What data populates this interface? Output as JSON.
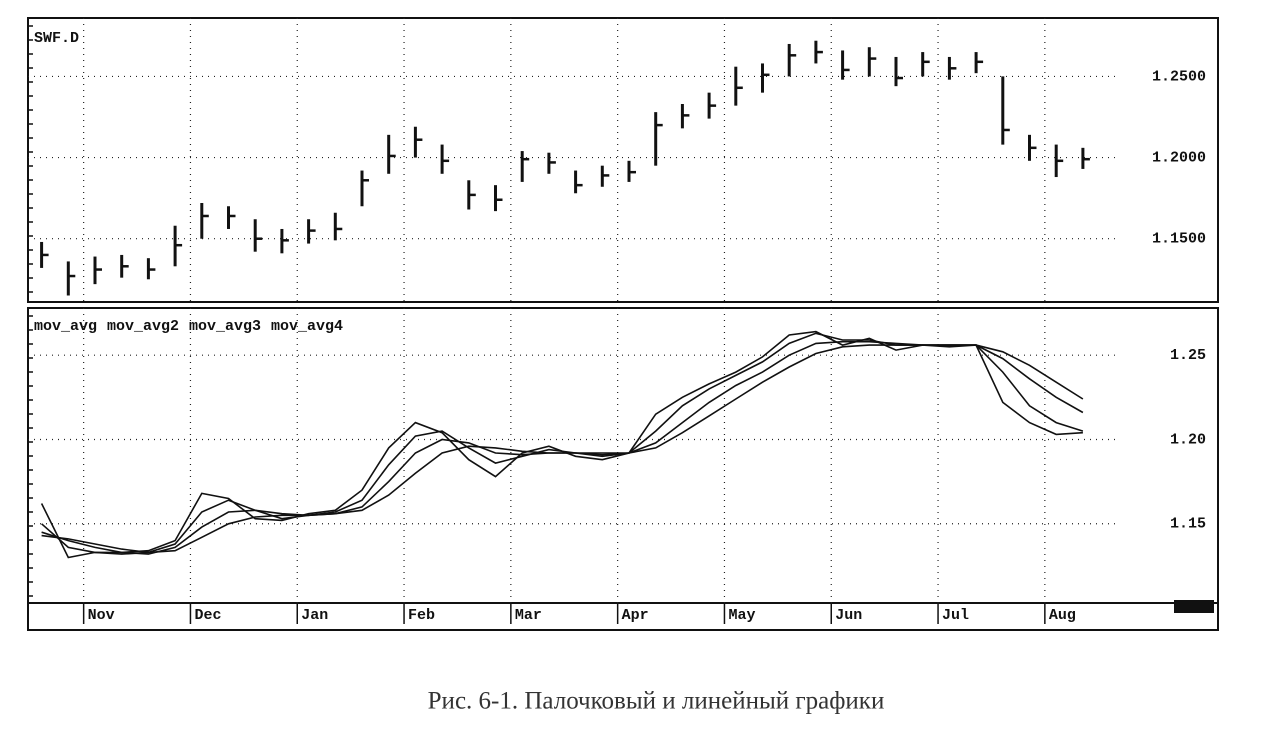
{
  "chart_data": [
    {
      "type": "ohlc",
      "title": "SWF.D",
      "color": "#111111",
      "categories": [
        null,
        null,
        null,
        null,
        null,
        null,
        null,
        null,
        null,
        null,
        null,
        null,
        null,
        null,
        null,
        null,
        null,
        null,
        null,
        null,
        null,
        null,
        null,
        null,
        null,
        null,
        null,
        null,
        null,
        null,
        null,
        null,
        null,
        null,
        null,
        null,
        null,
        null,
        null,
        null
      ],
      "high": [
        1.148,
        1.136,
        1.139,
        1.14,
        1.138,
        1.158,
        1.172,
        1.17,
        1.162,
        1.156,
        1.162,
        1.166,
        1.192,
        1.214,
        1.219,
        1.208,
        1.186,
        1.183,
        1.204,
        1.203,
        1.192,
        1.195,
        1.198,
        1.228,
        1.233,
        1.24,
        1.256,
        1.258,
        1.27,
        1.272,
        1.266,
        1.268,
        1.262,
        1.265,
        1.262,
        1.265,
        1.25,
        1.214,
        1.208,
        1.206
      ],
      "low": [
        1.132,
        1.115,
        1.122,
        1.126,
        1.125,
        1.133,
        1.15,
        1.156,
        1.142,
        1.141,
        1.147,
        1.149,
        1.17,
        1.19,
        1.2,
        1.19,
        1.168,
        1.167,
        1.185,
        1.19,
        1.178,
        1.182,
        1.185,
        1.195,
        1.218,
        1.224,
        1.232,
        1.24,
        1.25,
        1.258,
        1.248,
        1.25,
        1.244,
        1.25,
        1.248,
        1.252,
        1.208,
        1.198,
        1.188,
        1.193
      ],
      "close": [
        1.14,
        1.127,
        1.131,
        1.133,
        1.131,
        1.146,
        1.164,
        1.164,
        1.15,
        1.149,
        1.155,
        1.156,
        1.186,
        1.201,
        1.211,
        1.198,
        1.177,
        1.174,
        1.199,
        1.197,
        1.183,
        1.189,
        1.191,
        1.22,
        1.226,
        1.232,
        1.243,
        1.251,
        1.263,
        1.265,
        1.254,
        1.261,
        1.249,
        1.259,
        1.255,
        1.259,
        1.217,
        1.206,
        1.198,
        1.199
      ],
      "ylim": [
        1.111,
        1.286
      ],
      "yticks": [
        {
          "value": 1.15,
          "label": "1.1500"
        },
        {
          "value": 1.2,
          "label": "1.2000"
        },
        {
          "value": 1.25,
          "label": "1.2500"
        }
      ],
      "grid": true
    },
    {
      "type": "line",
      "categories": [
        null,
        null,
        "Nov",
        null,
        null,
        null,
        "Dec",
        null,
        null,
        null,
        "Jan",
        null,
        null,
        null,
        "Feb",
        null,
        null,
        null,
        "Mar",
        null,
        null,
        null,
        "Apr",
        null,
        null,
        null,
        "May",
        null,
        null,
        null,
        "Jun",
        null,
        null,
        null,
        "Jul",
        null,
        null,
        null,
        "Aug",
        null
      ],
      "series": [
        {
          "name": "mov_avg",
          "color": "#111111",
          "values": [
            1.162,
            1.13,
            1.133,
            1.133,
            1.134,
            1.14,
            1.168,
            1.165,
            1.153,
            1.152,
            1.156,
            1.158,
            1.17,
            1.195,
            1.21,
            1.204,
            1.188,
            1.178,
            1.192,
            1.196,
            1.19,
            1.188,
            1.192,
            1.215,
            1.225,
            1.233,
            1.24,
            1.249,
            1.262,
            1.264,
            1.256,
            1.26,
            1.253,
            1.256,
            1.255,
            1.256,
            1.222,
            1.21,
            1.203,
            1.204
          ]
        },
        {
          "name": "mov_avg2",
          "color": "#111111",
          "values": [
            1.15,
            1.136,
            1.133,
            1.132,
            1.133,
            1.138,
            1.157,
            1.164,
            1.158,
            1.153,
            1.155,
            1.157,
            1.164,
            1.185,
            1.202,
            1.205,
            1.195,
            1.186,
            1.19,
            1.194,
            1.192,
            1.19,
            1.192,
            1.205,
            1.22,
            1.23,
            1.238,
            1.246,
            1.257,
            1.263,
            1.259,
            1.259,
            1.256,
            1.256,
            1.256,
            1.256,
            1.24,
            1.22,
            1.21,
            1.205
          ]
        },
        {
          "name": "mov_avg3",
          "color": "#111111",
          "values": [
            1.145,
            1.14,
            1.136,
            1.133,
            1.132,
            1.136,
            1.148,
            1.157,
            1.158,
            1.156,
            1.155,
            1.156,
            1.16,
            1.175,
            1.192,
            1.2,
            1.198,
            1.192,
            1.191,
            1.192,
            1.192,
            1.191,
            1.192,
            1.198,
            1.21,
            1.222,
            1.232,
            1.24,
            1.25,
            1.257,
            1.258,
            1.258,
            1.257,
            1.256,
            1.256,
            1.256,
            1.248,
            1.236,
            1.225,
            1.216
          ]
        },
        {
          "name": "mov_avg4",
          "color": "#111111",
          "values": [
            1.143,
            1.141,
            1.138,
            1.135,
            1.133,
            1.134,
            1.142,
            1.15,
            1.154,
            1.155,
            1.155,
            1.156,
            1.158,
            1.167,
            1.18,
            1.192,
            1.196,
            1.195,
            1.193,
            1.192,
            1.192,
            1.192,
            1.192,
            1.195,
            1.204,
            1.214,
            1.224,
            1.234,
            1.243,
            1.251,
            1.255,
            1.256,
            1.256,
            1.256,
            1.256,
            1.256,
            1.252,
            1.244,
            1.234,
            1.224
          ]
        }
      ],
      "ylim": [
        1.103,
        1.278
      ],
      "yticks": [
        {
          "value": 1.15,
          "label": "1.15"
        },
        {
          "value": 1.2,
          "label": "1.20"
        },
        {
          "value": 1.25,
          "label": "1.25"
        }
      ],
      "grid": true
    }
  ],
  "caption": "Рис. 6-1. Палочковый и линейный графики"
}
